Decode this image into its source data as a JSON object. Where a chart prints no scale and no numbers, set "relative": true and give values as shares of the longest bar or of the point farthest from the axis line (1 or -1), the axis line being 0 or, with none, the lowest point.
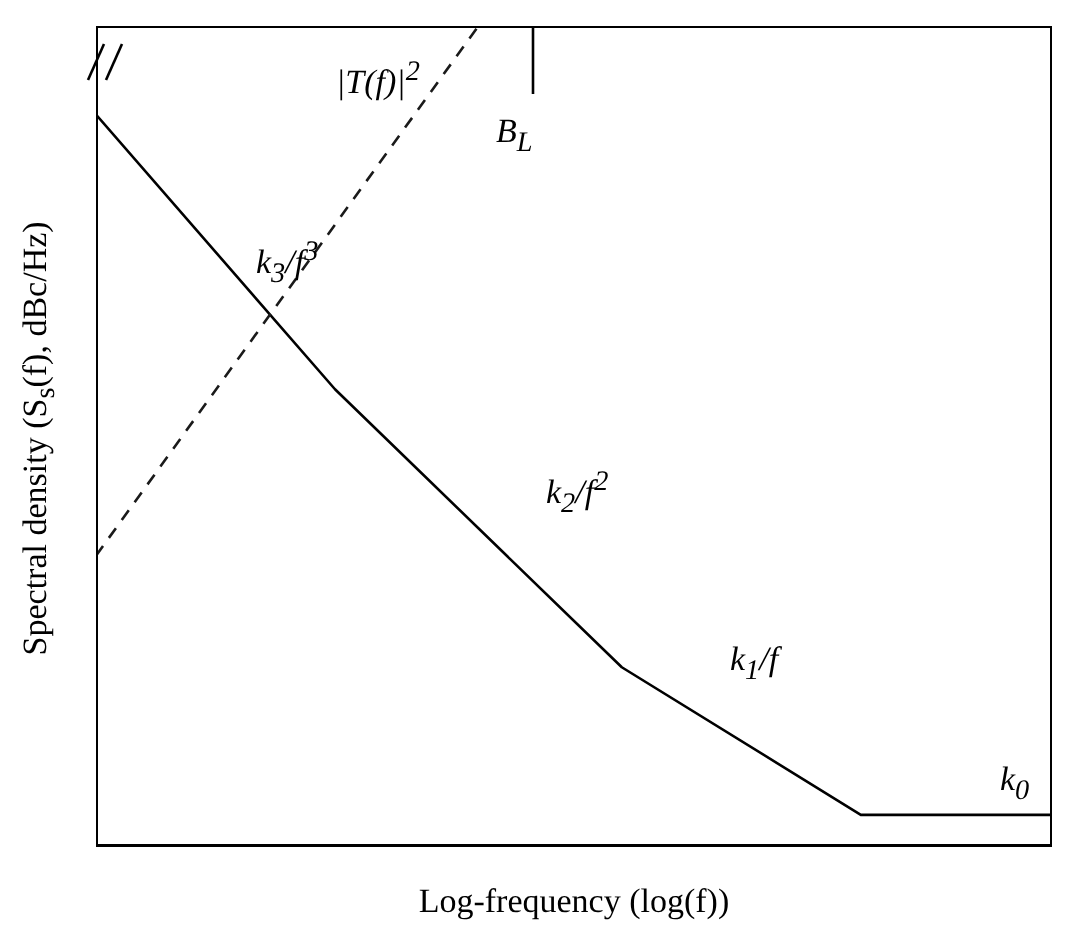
{
  "chart_data": {
    "type": "line",
    "xlabel": "Log-frequency (log(f))",
    "ylabel": "Spectral density (S$_{s}$(f), dBc/Hz)",
    "relative": true,
    "marker": "none",
    "categories": [
      null,
      null,
      null,
      null,
      null,
      null,
      null,
      null,
      null,
      null,
      null,
      null,
      null,
      null,
      null,
      null,
      null,
      null,
      null,
      null,
      null
    ],
    "series": [
      {
        "color": "#000000",
        "line_style": "solid",
        "values": [
          0.892,
          null,
          null,
          null,
          null,
          0.557,
          null,
          null,
          null,
          null,
          null,
          0.218,
          null,
          null,
          null,
          null,
          0.038,
          null,
          null,
          null,
          0.038
        ]
      },
      {
        "color": "#1a1a1a",
        "line_style": "dashed",
        "values": [
          0.354,
          null,
          null,
          null,
          null,
          null,
          null,
          null,
          1,
          null,
          null,
          null,
          null,
          null,
          null,
          null,
          null,
          null,
          null,
          null,
          null
        ]
      }
    ],
    "annotations": [
      "|T(f)|$^{2}$",
      "B$_{L}$",
      "k$_{3}$/f$^{3}$",
      "k$_{2}$/f$^{2}$",
      "k$_{1}$/f",
      "k$_{0}$"
    ]
  }
}
